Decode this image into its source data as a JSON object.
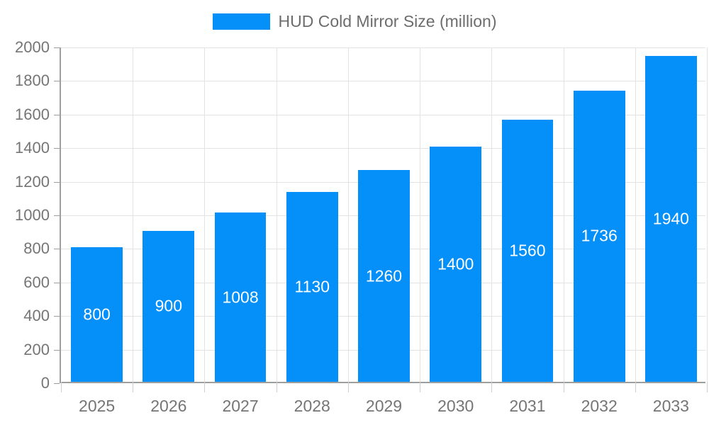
{
  "chart_data": {
    "type": "bar",
    "title": "HUD Cold Mirror Size (million)",
    "categories": [
      "2025",
      "2026",
      "2027",
      "2028",
      "2029",
      "2030",
      "2031",
      "2032",
      "2033"
    ],
    "values": [
      800,
      900,
      1008,
      1130,
      1260,
      1400,
      1560,
      1736,
      1940
    ],
    "xlabel": "",
    "ylabel": "",
    "ylim": [
      0,
      2000
    ],
    "yticks": [
      0,
      200,
      400,
      600,
      800,
      1000,
      1200,
      1400,
      1600,
      1800,
      2000
    ],
    "grid": true,
    "legend_position": "top-center",
    "bar_width_ratio": 0.72,
    "colors": {
      "bar": "#0490F8",
      "grid": "#E3E3E3",
      "axis": "#9E9E9E",
      "tick_label": "#757575",
      "legend_text": "#6D6D6D",
      "value_label": "#FFFFFF",
      "background": "#FFFFFF"
    }
  }
}
